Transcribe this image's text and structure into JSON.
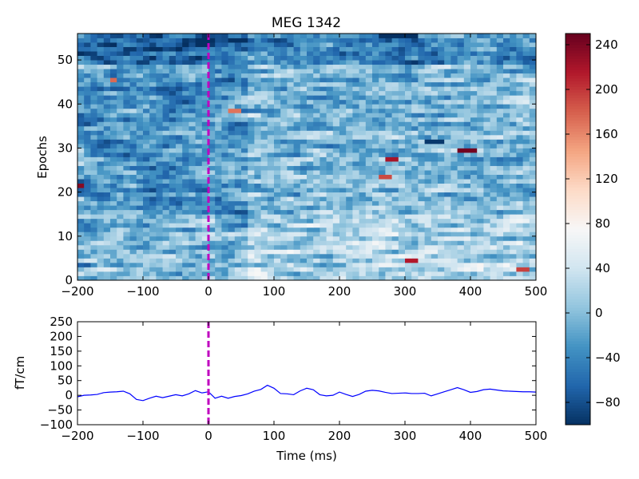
{
  "chart_data": [
    {
      "type": "heatmap",
      "title": "MEG 1342",
      "xlabel": "",
      "ylabel": "Epochs",
      "xlim": [
        -200,
        500
      ],
      "ylim": [
        0,
        56
      ],
      "xticks": [
        -200,
        -100,
        0,
        100,
        200,
        300,
        400,
        500
      ],
      "xtick_labels": [
        "−200",
        "−100",
        "0",
        "100",
        "200",
        "300",
        "400",
        "500"
      ],
      "yticks": [
        0,
        10,
        20,
        30,
        40,
        50
      ],
      "ytick_labels": [
        "0",
        "10",
        "20",
        "30",
        "40",
        "50"
      ],
      "n_epochs": 56,
      "time_step_ms": 10,
      "colormap": "RdBu_r",
      "color_range": [
        -100,
        250
      ],
      "grid": false,
      "event_line": {
        "x": 0,
        "color": "#bf00bf",
        "style": "dashed"
      },
      "colorbar": {
        "ticks": [
          -80,
          -40,
          0,
          40,
          80,
          120,
          160,
          200,
          240
        ],
        "tick_labels": [
          "−80",
          "−40",
          "0",
          "40",
          "80",
          "120",
          "160",
          "200",
          "240"
        ]
      },
      "highlights": [
        {
          "epoch": 29,
          "t_start": 380,
          "t_end": 410,
          "value": 245
        },
        {
          "epoch": 27,
          "t_start": 270,
          "t_end": 290,
          "value": 220
        },
        {
          "epoch": 21,
          "t_start": -200,
          "t_end": -190,
          "value": 235
        },
        {
          "epoch": 23,
          "t_start": 260,
          "t_end": 280,
          "value": 190
        },
        {
          "epoch": 4,
          "t_start": 300,
          "t_end": 320,
          "value": 215
        },
        {
          "epoch": 2,
          "t_start": 470,
          "t_end": 490,
          "value": 195
        },
        {
          "epoch": 38,
          "t_start": 30,
          "t_end": 50,
          "value": 170
        },
        {
          "epoch": 45,
          "t_start": -150,
          "t_end": -140,
          "value": 175
        },
        {
          "epoch": 55,
          "t_start": 260,
          "t_end": 320,
          "value": -100
        },
        {
          "epoch": 31,
          "t_start": 330,
          "t_end": 360,
          "value": -95
        }
      ]
    },
    {
      "type": "line",
      "title": "",
      "xlabel": "Time (ms)",
      "ylabel": "fT/cm",
      "xlim": [
        -200,
        500
      ],
      "ylim": [
        -100,
        250
      ],
      "xticks": [
        -200,
        -100,
        0,
        100,
        200,
        300,
        400,
        500
      ],
      "xtick_labels": [
        "−200",
        "−100",
        "0",
        "100",
        "200",
        "300",
        "400",
        "500"
      ],
      "yticks": [
        -100,
        -50,
        0,
        50,
        100,
        150,
        200,
        250
      ],
      "ytick_labels": [
        "−100",
        "−50",
        "0",
        "50",
        "100",
        "150",
        "200",
        "250"
      ],
      "grid": false,
      "line_color": "#0000ff",
      "event_line": {
        "x": 0,
        "color": "#bf00bf",
        "style": "dashed"
      },
      "series": [
        {
          "x": [
            -200,
            -190,
            -180,
            -170,
            -160,
            -150,
            -140,
            -130,
            -120,
            -110,
            -100,
            -90,
            -80,
            -70,
            -60,
            -50,
            -40,
            -30,
            -20,
            -10,
            0,
            10,
            20,
            30,
            40,
            50,
            60,
            70,
            80,
            90,
            100,
            110,
            120,
            130,
            140,
            150,
            160,
            170,
            180,
            190,
            200,
            210,
            220,
            230,
            240,
            250,
            260,
            270,
            280,
            290,
            300,
            310,
            320,
            330,
            340,
            350,
            360,
            370,
            380,
            390,
            400,
            410,
            420,
            430,
            440,
            450,
            460,
            470,
            480,
            490,
            500
          ],
          "y": [
            -5,
            0,
            1,
            3,
            9,
            11,
            12,
            14,
            5,
            -14,
            -18,
            -10,
            -3,
            -8,
            -3,
            2,
            -2,
            5,
            16,
            8,
            12,
            -10,
            -3,
            -10,
            -4,
            -1,
            5,
            14,
            20,
            34,
            24,
            6,
            5,
            2,
            15,
            24,
            19,
            2,
            -2,
            0,
            11,
            3,
            -4,
            3,
            14,
            17,
            15,
            10,
            6,
            7,
            8,
            6,
            6,
            7,
            -2,
            5,
            12,
            19,
            26,
            19,
            10,
            13,
            19,
            21,
            18,
            15,
            14,
            13,
            12,
            12,
            11
          ]
        }
      ]
    }
  ]
}
